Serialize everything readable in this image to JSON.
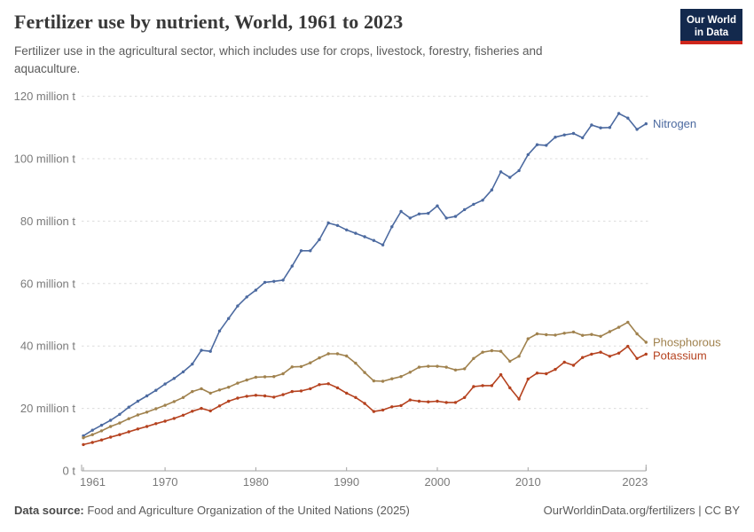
{
  "header": {
    "title": "Fertilizer use by nutrient, World, 1961 to 2023",
    "subtitle": "Fertilizer use in the agricultural sector, which includes use for crops, livestock, forestry, fisheries and aquaculture."
  },
  "logo": {
    "line1": "Our World",
    "line2": "in Data",
    "bg_color": "#13294D",
    "accent_color": "#CE261C"
  },
  "chart_data": {
    "type": "line",
    "title": "Fertilizer use by nutrient, World, 1961 to 2023",
    "unit": "million tonnes",
    "x_label": "",
    "y_label": "",
    "x": [
      1961,
      1962,
      1963,
      1964,
      1965,
      1966,
      1967,
      1968,
      1969,
      1970,
      1971,
      1972,
      1973,
      1974,
      1975,
      1976,
      1977,
      1978,
      1979,
      1980,
      1981,
      1982,
      1983,
      1984,
      1985,
      1986,
      1987,
      1988,
      1989,
      1990,
      1991,
      1992,
      1993,
      1994,
      1995,
      1996,
      1997,
      1998,
      1999,
      2000,
      2001,
      2002,
      2003,
      2004,
      2005,
      2006,
      2007,
      2008,
      2009,
      2010,
      2011,
      2012,
      2013,
      2014,
      2015,
      2016,
      2017,
      2018,
      2019,
      2020,
      2021,
      2022,
      2023
    ],
    "xlim": [
      1961,
      2023
    ],
    "ylim": [
      0,
      120
    ],
    "x_ticks": [
      1961,
      1970,
      1980,
      1990,
      2000,
      2010,
      2023
    ],
    "y_ticks": [
      0,
      20,
      40,
      60,
      80,
      100,
      120
    ],
    "y_tick_suffix": " million t",
    "y_tick_zero_label": "0 t",
    "grid": "horizontal-dashed",
    "legend_position": "end-of-line-labels",
    "grid_color": "#dcdcdc",
    "axis_color": "#a3a3a3",
    "tick_label_color": "#7a7a7a",
    "series": [
      {
        "name": "Nitrogen",
        "color": "#4C6AA0",
        "values": [
          11.2,
          13.0,
          14.6,
          16.2,
          18.1,
          20.4,
          22.3,
          24.0,
          25.8,
          27.8,
          29.6,
          31.7,
          34.2,
          38.6,
          38.3,
          44.8,
          48.8,
          52.8,
          55.7,
          57.9,
          60.4,
          60.7,
          61.1,
          65.6,
          70.5,
          70.5,
          74.1,
          79.4,
          78.6,
          77.2,
          76.1,
          75.0,
          73.8,
          72.4,
          78.2,
          83.1,
          81.0,
          82.3,
          82.5,
          84.9,
          81.0,
          81.5,
          83.7,
          85.4,
          86.7,
          90.0,
          95.8,
          94.0,
          96.2,
          101.3,
          104.5,
          104.3,
          106.9,
          107.6,
          108.1,
          106.7,
          110.8,
          109.9,
          110.0,
          114.5,
          113.0,
          109.4,
          111.2
        ]
      },
      {
        "name": "Phosphorous",
        "color": "#A0824E",
        "values": [
          10.6,
          11.6,
          12.8,
          14.2,
          15.3,
          16.7,
          17.9,
          18.8,
          19.9,
          21.0,
          22.2,
          23.5,
          25.4,
          26.3,
          24.9,
          25.9,
          26.8,
          28.1,
          29.1,
          30.0,
          30.1,
          30.2,
          31.1,
          33.3,
          33.4,
          34.6,
          36.2,
          37.5,
          37.5,
          36.8,
          34.5,
          31.5,
          28.8,
          28.7,
          29.5,
          30.2,
          31.6,
          33.2,
          33.5,
          33.5,
          33.2,
          32.3,
          32.7,
          36.0,
          38.0,
          38.5,
          38.3,
          35.1,
          36.7,
          42.3,
          43.9,
          43.6,
          43.5,
          44.1,
          44.5,
          43.4,
          43.7,
          43.1,
          44.6,
          46.0,
          47.6,
          43.9,
          41.2
        ]
      },
      {
        "name": "Potassium",
        "color": "#B5421F",
        "values": [
          8.4,
          9.1,
          9.9,
          10.8,
          11.6,
          12.5,
          13.4,
          14.2,
          15.1,
          15.9,
          16.8,
          17.8,
          19.1,
          20.0,
          19.2,
          20.8,
          22.3,
          23.3,
          23.9,
          24.2,
          24.0,
          23.6,
          24.4,
          25.4,
          25.6,
          26.3,
          27.6,
          27.9,
          26.6,
          24.9,
          23.5,
          21.6,
          19.0,
          19.5,
          20.5,
          20.9,
          22.7,
          22.3,
          22.1,
          22.3,
          21.9,
          21.9,
          23.5,
          27.0,
          27.3,
          27.3,
          30.8,
          26.6,
          23.0,
          29.4,
          31.3,
          31.1,
          32.5,
          34.8,
          33.8,
          36.3,
          37.4,
          38.0,
          36.7,
          37.7,
          39.9,
          36.0,
          37.4
        ]
      }
    ]
  },
  "footer": {
    "source_label": "Data source:",
    "source_text": " Food and Agriculture Organization of the United Nations (2025)",
    "link_text": "OurWorldinData.org/fertilizers",
    "separator": " | ",
    "license_text": "CC BY"
  }
}
